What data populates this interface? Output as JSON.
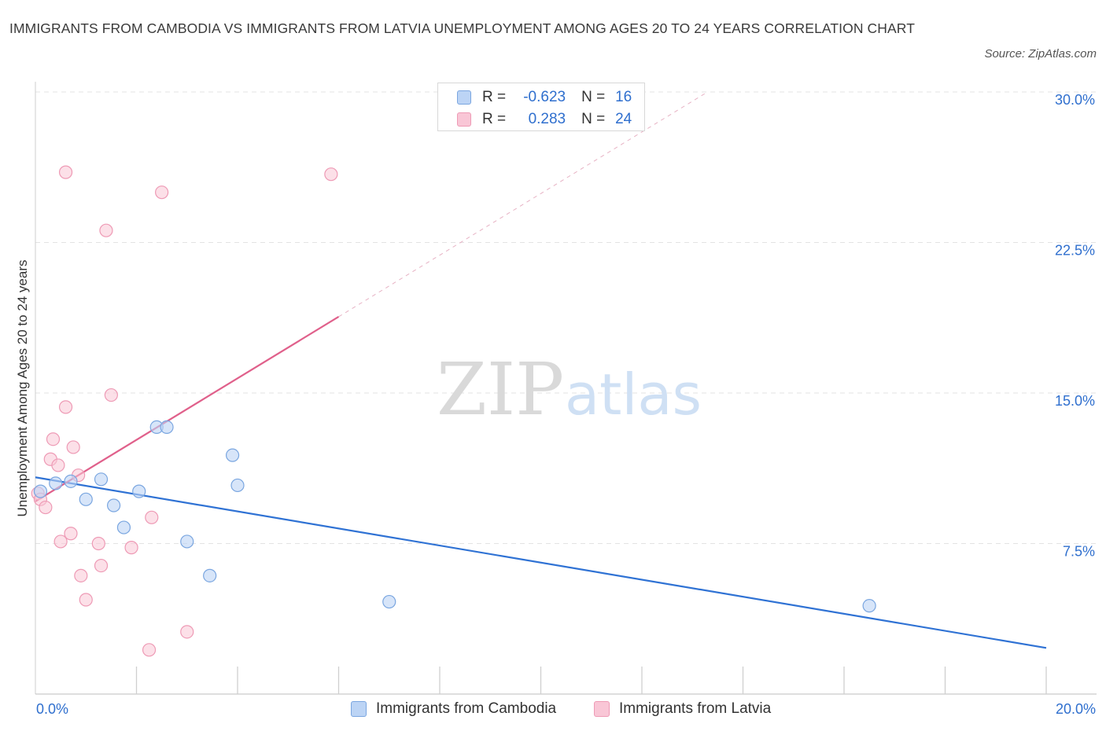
{
  "title": "IMMIGRANTS FROM CAMBODIA VS IMMIGRANTS FROM LATVIA UNEMPLOYMENT AMONG AGES 20 TO 24 YEARS CORRELATION CHART",
  "source": "Source: ZipAtlas.com",
  "watermark": {
    "zip": "ZIP",
    "atlas": "atlas"
  },
  "colors": {
    "cambodia_fill": "#bcd4f5",
    "cambodia_stroke": "#7aa6e0",
    "cambodia_line": "#2f72d4",
    "latvia_fill": "#f9c6d6",
    "latvia_stroke": "#ee9ab5",
    "latvia_line": "#e0608b",
    "axis_label": "#2f6fce",
    "grid": "#e3e3e3"
  },
  "legend": {
    "rows": [
      {
        "r_label": "R =",
        "r_value": "-0.623",
        "n_label": "N =",
        "n_value": "16"
      },
      {
        "r_label": "R =",
        "r_value": "0.283",
        "n_label": "N =",
        "n_value": "24"
      }
    ]
  },
  "chart_data": {
    "type": "scatter",
    "title": "IMMIGRANTS FROM CAMBODIA VS IMMIGRANTS FROM LATVIA UNEMPLOYMENT AMONG AGES 20 TO 24 YEARS CORRELATION CHART",
    "xlabel": "",
    "ylabel": "Unemployment Among Ages 20 to 24 years",
    "xlim": [
      0,
      20
    ],
    "ylim": [
      0,
      30
    ],
    "x_tick_labels": [
      {
        "value": 0,
        "label": "0.0%"
      },
      {
        "value": 20,
        "label": "20.0%"
      }
    ],
    "y_tick_labels": [
      {
        "value": 7.5,
        "label": "7.5%"
      },
      {
        "value": 15,
        "label": "15.0%"
      },
      {
        "value": 22.5,
        "label": "22.5%"
      },
      {
        "value": 30,
        "label": "30.0%"
      }
    ],
    "grid": true,
    "legend_position": "bottom",
    "series": [
      {
        "name": "Immigrants from Cambodia",
        "r": -0.623,
        "n": 16,
        "points": [
          {
            "x": 0.1,
            "y": 10.1
          },
          {
            "x": 0.4,
            "y": 10.5
          },
          {
            "x": 0.7,
            "y": 10.6
          },
          {
            "x": 1.0,
            "y": 9.7
          },
          {
            "x": 1.3,
            "y": 10.7
          },
          {
            "x": 1.55,
            "y": 9.4
          },
          {
            "x": 1.75,
            "y": 8.3
          },
          {
            "x": 2.05,
            "y": 10.1
          },
          {
            "x": 2.4,
            "y": 13.3
          },
          {
            "x": 2.6,
            "y": 13.3
          },
          {
            "x": 3.0,
            "y": 7.6
          },
          {
            "x": 3.45,
            "y": 5.9
          },
          {
            "x": 3.9,
            "y": 11.9
          },
          {
            "x": 4.0,
            "y": 10.4
          },
          {
            "x": 7.0,
            "y": 4.6
          },
          {
            "x": 16.5,
            "y": 4.4
          }
        ],
        "trend": {
          "x_start": 0,
          "y_start": 10.8,
          "x_end": 20,
          "y_end": 2.3
        }
      },
      {
        "name": "Immigrants from Latvia",
        "r": 0.283,
        "n": 24,
        "points": [
          {
            "x": 0.05,
            "y": 10.0
          },
          {
            "x": 0.1,
            "y": 9.7
          },
          {
            "x": 0.2,
            "y": 9.3
          },
          {
            "x": 0.3,
            "y": 11.7
          },
          {
            "x": 0.35,
            "y": 12.7
          },
          {
            "x": 0.45,
            "y": 11.4
          },
          {
            "x": 0.5,
            "y": 7.6
          },
          {
            "x": 0.6,
            "y": 14.3
          },
          {
            "x": 0.6,
            "y": 26.0
          },
          {
            "x": 0.7,
            "y": 8.0
          },
          {
            "x": 0.75,
            "y": 12.3
          },
          {
            "x": 0.85,
            "y": 10.9
          },
          {
            "x": 0.9,
            "y": 5.9
          },
          {
            "x": 1.0,
            "y": 4.7
          },
          {
            "x": 1.25,
            "y": 7.5
          },
          {
            "x": 1.3,
            "y": 6.4
          },
          {
            "x": 1.4,
            "y": 23.1
          },
          {
            "x": 1.5,
            "y": 14.9
          },
          {
            "x": 1.9,
            "y": 7.3
          },
          {
            "x": 2.25,
            "y": 2.2
          },
          {
            "x": 2.3,
            "y": 8.8
          },
          {
            "x": 2.5,
            "y": 25.0
          },
          {
            "x": 3.0,
            "y": 3.1
          },
          {
            "x": 5.85,
            "y": 25.9
          }
        ],
        "trend": {
          "x_start": 0,
          "y_start": 9.6,
          "x_end": 6.0,
          "y_end": 18.8
        },
        "trend_extension": {
          "x_start": 6.0,
          "y_start": 18.8,
          "x_end": 13.3,
          "y_end": 30.0
        }
      }
    ]
  }
}
